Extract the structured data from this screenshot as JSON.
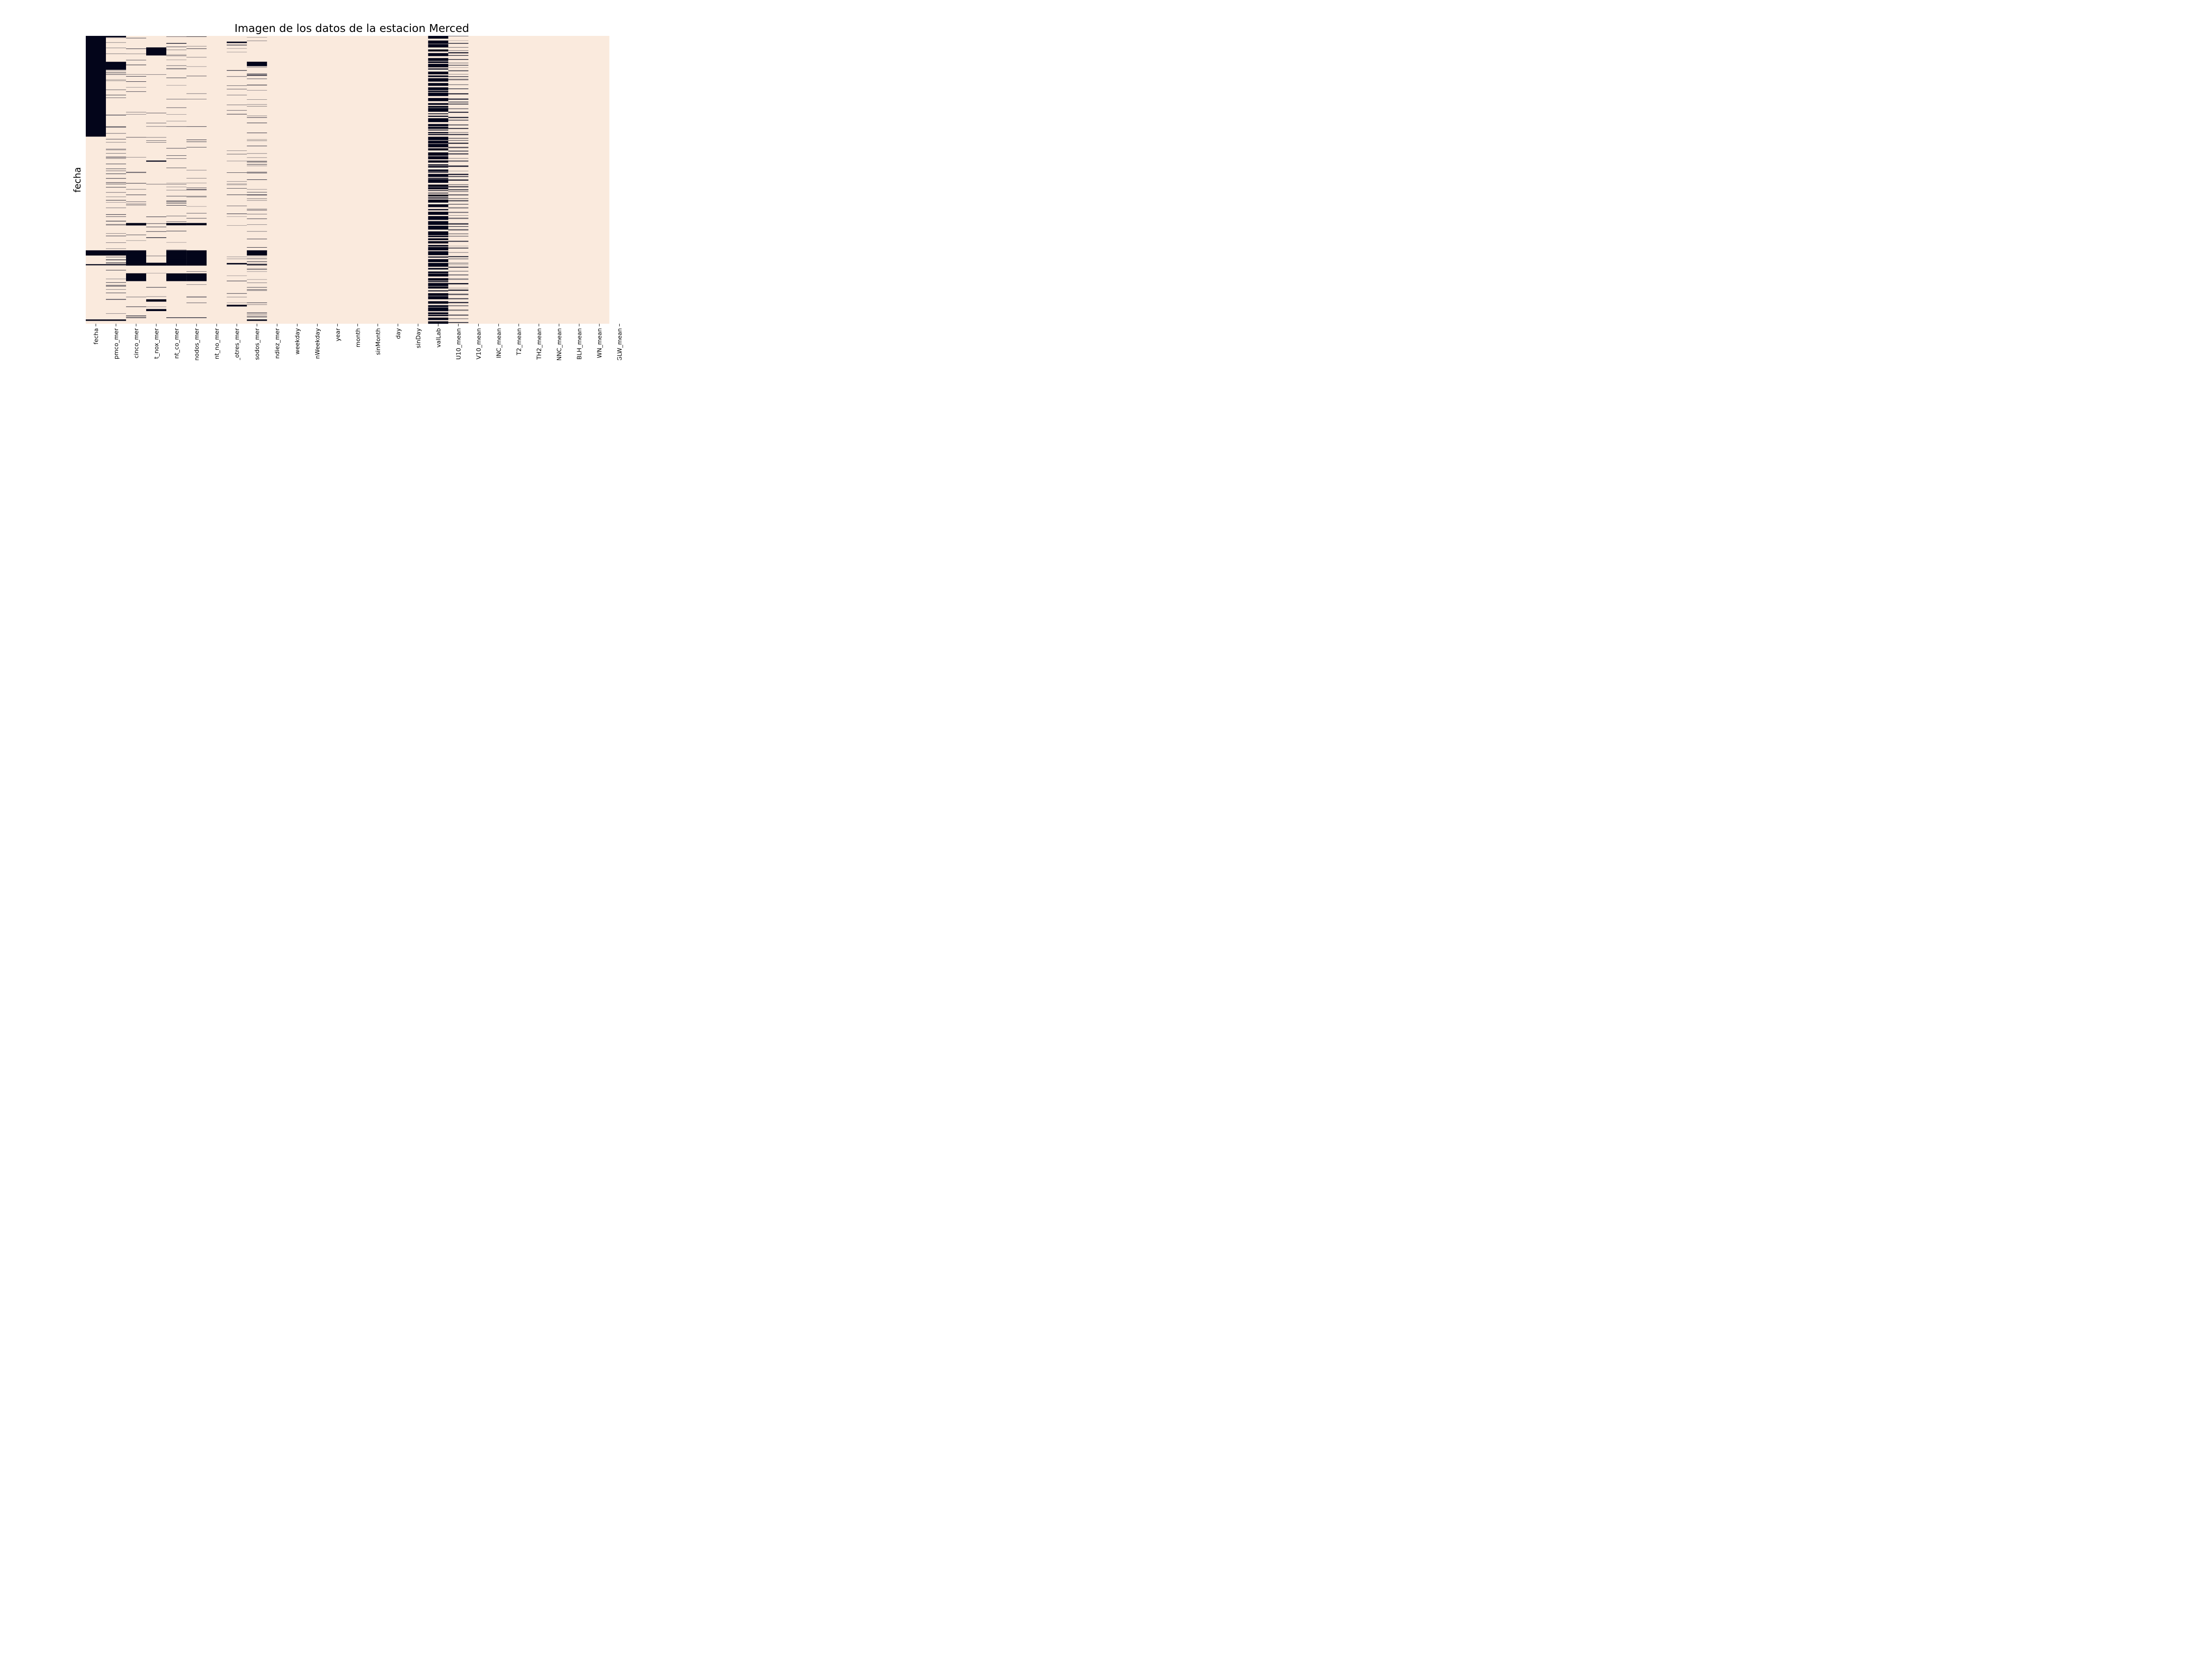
{
  "chart_data": {
    "type": "heatmap",
    "title": "Imagen de los datos de la estacion Merced",
    "ylabel": "fecha",
    "xlabel": "",
    "colors": {
      "present": "#faeadd",
      "missing": "#03051a",
      "tick": "#000000"
    },
    "legend": "none",
    "grid": false,
    "columns": [
      "fecha",
      "pmco_mer",
      "cinco_mer",
      "t_nox_mer",
      "nt_co_mer",
      "nodos_mer",
      "nt_no_mer",
      "_otres_mer",
      "sodos_mer",
      "ndiez_mer",
      "weekday",
      "nWeekday",
      "year",
      "month",
      "sinMonth",
      "day",
      "sinDay",
      "valLab",
      "U10_mean",
      "V10_mean",
      "INC_mean",
      "T2_mean",
      "TH2_mean",
      "NNC_mean",
      "BLH_mean",
      "WN_mean",
      "GLW_mean"
    ],
    "missing_segments": {
      "fecha": [
        [
          0,
          0.35
        ],
        [
          0.745,
          0.763
        ],
        [
          0.793,
          0.797
        ],
        [
          0.985,
          0.99
        ]
      ],
      "pmco_mer": [
        [
          0.0,
          0.005
        ],
        [
          0.09,
          0.118
        ],
        [
          0.745,
          0.763
        ],
        [
          0.793,
          0.797
        ],
        [
          0.985,
          0.99
        ]
      ],
      "cinco_mer": [
        [
          0.65,
          0.658
        ],
        [
          0.745,
          0.798
        ],
        [
          0.825,
          0.852
        ],
        [
          0.978,
          0.98
        ]
      ],
      "t_nox_mer": [
        [
          0.04,
          0.068
        ],
        [
          0.433,
          0.437
        ],
        [
          0.7,
          0.702
        ],
        [
          0.788,
          0.798
        ],
        [
          0.915,
          0.923
        ],
        [
          0.949,
          0.956
        ]
      ],
      "nt_co_mer": [
        [
          0.65,
          0.658
        ],
        [
          0.745,
          0.798
        ],
        [
          0.825,
          0.852
        ],
        [
          0.978,
          0.98
        ]
      ],
      "nodos_mer": [
        [
          0.65,
          0.658
        ],
        [
          0.745,
          0.798
        ],
        [
          0.825,
          0.852
        ],
        [
          0.978,
          0.98
        ]
      ],
      "_otres_mer": [
        [
          0.02,
          0.025
        ],
        [
          0.789,
          0.794
        ],
        [
          0.934,
          0.94
        ]
      ],
      "sodos_mer": [
        [
          0.09,
          0.105
        ],
        [
          0.745,
          0.763
        ],
        [
          0.793,
          0.797
        ],
        [
          0.985,
          0.99
        ]
      ],
      "valLab": "dense-stripes",
      "U10_mean": "medium-stripes"
    }
  }
}
